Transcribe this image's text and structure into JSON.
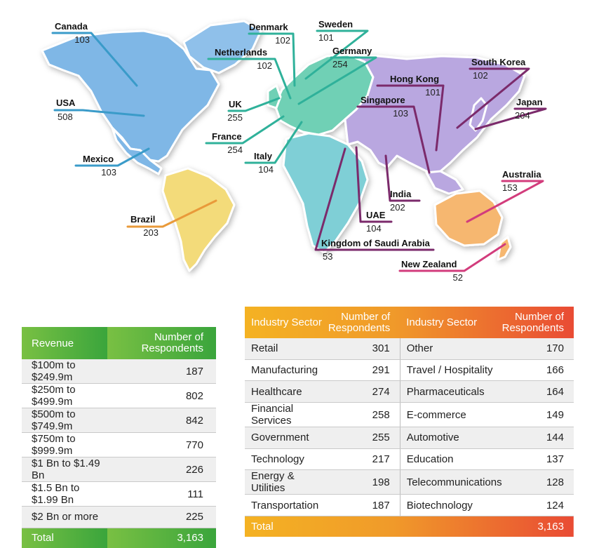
{
  "colors": {
    "north_america": "#7fb7e6",
    "south_america": "#f3db7a",
    "europe": "#6fd0b5",
    "africa": "#7fcfd6",
    "asia": "#b9a7e0",
    "oceania": "#f6b770",
    "leader_blue": "#3a9bc9",
    "leader_teal": "#2fb19a",
    "leader_purple": "#7b2a6b",
    "leader_magenta": "#d23c7c",
    "leader_orange": "#e99a3a"
  },
  "map": {
    "labels": [
      {
        "id": "canada",
        "name": "Canada",
        "value": "103"
      },
      {
        "id": "usa",
        "name": "USA",
        "value": "508"
      },
      {
        "id": "mexico",
        "name": "Mexico",
        "value": "103"
      },
      {
        "id": "brazil",
        "name": "Brazil",
        "value": "203"
      },
      {
        "id": "denmark",
        "name": "Denmark",
        "value": "102"
      },
      {
        "id": "sweden",
        "name": "Sweden",
        "value": "101"
      },
      {
        "id": "netherlands",
        "name": "Netherlands",
        "value": "102"
      },
      {
        "id": "germany",
        "name": "Germany",
        "value": "254"
      },
      {
        "id": "uk",
        "name": "UK",
        "value": "255"
      },
      {
        "id": "france",
        "name": "France",
        "value": "254"
      },
      {
        "id": "italy",
        "name": "Italy",
        "value": "104"
      },
      {
        "id": "hong-kong",
        "name": "Hong Kong",
        "value": "101"
      },
      {
        "id": "south-korea",
        "name": "South Korea",
        "value": "102"
      },
      {
        "id": "singapore",
        "name": "Singapore",
        "value": "103"
      },
      {
        "id": "japan",
        "name": "Japan",
        "value": "204"
      },
      {
        "id": "australia",
        "name": "Australia",
        "value": "153"
      },
      {
        "id": "india",
        "name": "India",
        "value": "202"
      },
      {
        "id": "uae",
        "name": "UAE",
        "value": "104"
      },
      {
        "id": "saudi",
        "name": "Kingdom of Saudi Arabia",
        "value": "53"
      },
      {
        "id": "new-zealand",
        "name": "New Zealand",
        "value": "52"
      }
    ]
  },
  "revenue_table": {
    "header": [
      "Revenue",
      "Number of Respondents"
    ],
    "rows": [
      [
        "$100m to $249.9m",
        "187"
      ],
      [
        "$250m to $499.9m",
        "802"
      ],
      [
        "$500m to $749.9m",
        "842"
      ],
      [
        "$750m to $999.9m",
        "770"
      ],
      [
        "$1 Bn to $1.49 Bn",
        "226"
      ],
      [
        "$1.5 Bn to $1.99 Bn",
        "111"
      ],
      [
        "$2 Bn or more",
        "225"
      ]
    ],
    "total_label": "Total",
    "total_value": "3,163"
  },
  "industry_table": {
    "header": [
      "Industry Sector",
      "Number of Respondents",
      "Industry Sector",
      "Number of Respondents"
    ],
    "rows": [
      [
        "Retail",
        "301",
        "Other",
        "170"
      ],
      [
        "Manufacturing",
        "291",
        "Travel / Hospitality",
        "166"
      ],
      [
        "Healthcare",
        "274",
        "Pharmaceuticals",
        "164"
      ],
      [
        "Financial Services",
        "258",
        "E-commerce",
        "149"
      ],
      [
        "Government",
        "255",
        "Automotive",
        "144"
      ],
      [
        "Technology",
        "217",
        "Education",
        "137"
      ],
      [
        "Energy & Utilities",
        "198",
        "Telecommunications",
        "128"
      ],
      [
        "Transportation",
        "187",
        "Biotechnology",
        "124"
      ]
    ],
    "total_label": "Total",
    "total_value": "3,163"
  }
}
